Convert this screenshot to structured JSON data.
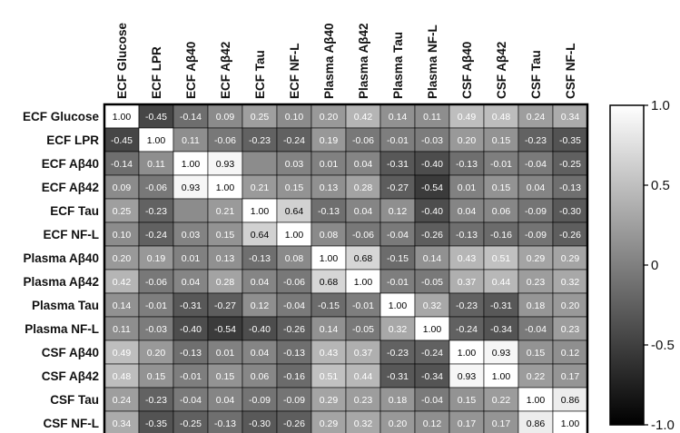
{
  "chart_data": {
    "type": "heatmap",
    "title": "",
    "xlabel": "",
    "ylabel": "",
    "columns": [
      "ECF Glucose",
      "ECF LPR",
      "ECF Aβ40",
      "ECF Aβ42",
      "ECF Tau",
      "ECF NF-L",
      "Plasma Aβ40",
      "Plasma Aβ42",
      "Plasma Tau",
      "Plasma NF-L",
      "CSF Aβ40",
      "CSF Aβ42",
      "CSF Tau",
      "CSF NF-L"
    ],
    "rows": [
      "ECF Glucose",
      "ECF LPR",
      "ECF Aβ40",
      "ECF Aβ42",
      "ECF Tau",
      "ECF NF-L",
      "Plasma Aβ40",
      "Plasma Aβ42",
      "Plasma Tau",
      "Plasma NF-L",
      "CSF Aβ40",
      "CSF Aβ42",
      "CSF Tau",
      "CSF NF-L"
    ],
    "values": [
      [
        1.0,
        -0.45,
        -0.14,
        0.09,
        0.25,
        0.1,
        0.2,
        0.42,
        0.14,
        0.11,
        0.49,
        0.48,
        0.24,
        0.34
      ],
      [
        -0.45,
        1.0,
        0.11,
        -0.06,
        -0.23,
        -0.24,
        0.19,
        -0.06,
        -0.01,
        -0.03,
        0.2,
        0.15,
        -0.23,
        -0.35
      ],
      [
        -0.14,
        0.11,
        1.0,
        0.93,
        null,
        0.03,
        0.01,
        0.04,
        -0.31,
        -0.4,
        -0.13,
        -0.01,
        -0.04,
        -0.25
      ],
      [
        0.09,
        -0.06,
        0.93,
        1.0,
        0.21,
        0.15,
        0.13,
        0.28,
        -0.27,
        -0.54,
        0.01,
        0.15,
        0.04,
        -0.13
      ],
      [
        0.25,
        -0.23,
        null,
        0.21,
        1.0,
        0.64,
        -0.13,
        0.04,
        0.12,
        -0.4,
        0.04,
        0.06,
        -0.09,
        -0.3
      ],
      [
        0.1,
        -0.24,
        0.03,
        0.15,
        0.64,
        1.0,
        0.08,
        -0.06,
        -0.04,
        -0.26,
        -0.13,
        -0.16,
        -0.09,
        -0.26
      ],
      [
        0.2,
        0.19,
        0.01,
        0.13,
        -0.13,
        0.08,
        1.0,
        0.68,
        -0.15,
        0.14,
        0.43,
        0.51,
        0.29,
        0.29
      ],
      [
        0.42,
        -0.06,
        0.04,
        0.28,
        0.04,
        -0.06,
        0.68,
        1.0,
        -0.01,
        -0.05,
        0.37,
        0.44,
        0.23,
        0.32
      ],
      [
        0.14,
        -0.01,
        -0.31,
        -0.27,
        0.12,
        -0.04,
        -0.15,
        -0.01,
        1.0,
        0.32,
        -0.23,
        -0.31,
        0.18,
        0.2
      ],
      [
        0.11,
        -0.03,
        -0.4,
        -0.54,
        -0.4,
        -0.26,
        0.14,
        -0.05,
        0.32,
        1.0,
        -0.24,
        -0.34,
        -0.04,
        0.23
      ],
      [
        0.49,
        0.2,
        -0.13,
        0.01,
        0.04,
        -0.13,
        0.43,
        0.37,
        -0.23,
        -0.24,
        1.0,
        0.93,
        0.15,
        0.12
      ],
      [
        0.48,
        0.15,
        -0.01,
        0.15,
        0.06,
        -0.16,
        0.51,
        0.44,
        -0.31,
        -0.34,
        0.93,
        1.0,
        0.22,
        0.17
      ],
      [
        0.24,
        -0.23,
        -0.04,
        0.04,
        -0.09,
        -0.09,
        0.29,
        0.23,
        0.18,
        -0.04,
        0.15,
        0.22,
        1.0,
        0.86
      ],
      [
        0.34,
        -0.35,
        -0.25,
        -0.13,
        -0.3,
        -0.26,
        0.29,
        0.32,
        0.2,
        0.12,
        0.17,
        0.17,
        0.86,
        1.0
      ]
    ],
    "colorbar": {
      "range": [
        -1.0,
        1.0
      ],
      "ticks": [
        1.0,
        0.5,
        0,
        -0.5,
        -1.0
      ],
      "tick_labels": [
        "1.0",
        "0.5",
        "0",
        "-0.5",
        "-1.0"
      ],
      "low_color": "#000000",
      "high_color": "#ffffff"
    },
    "grid": true,
    "legend": "right"
  }
}
